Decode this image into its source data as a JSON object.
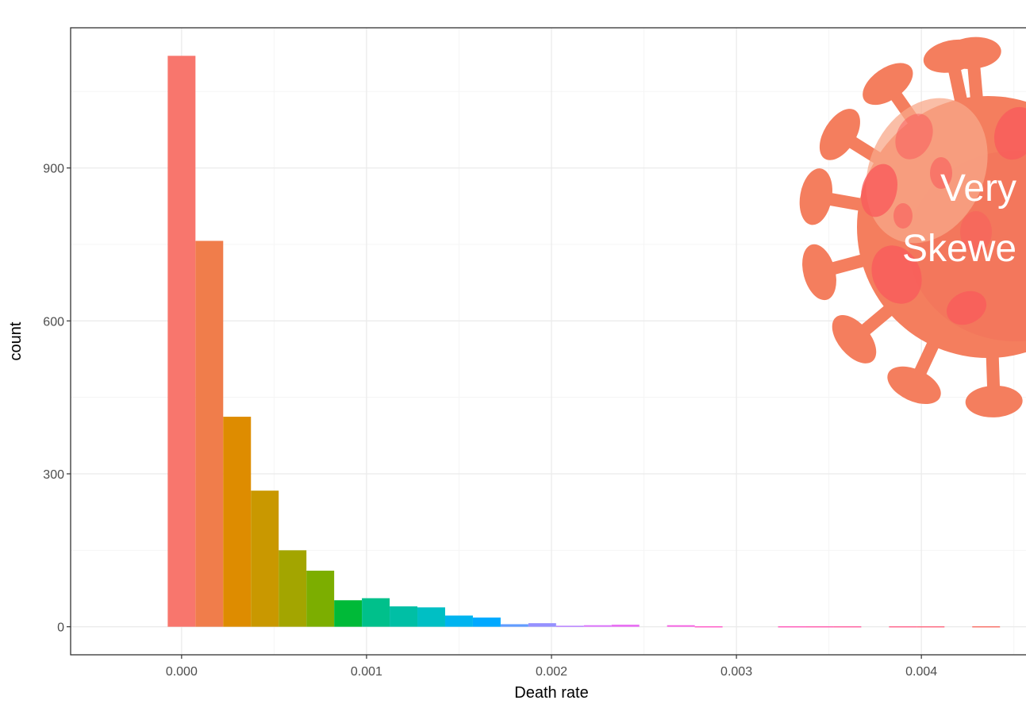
{
  "chart_data": {
    "type": "bar",
    "subtype": "histogram",
    "xlabel": "Death rate",
    "ylabel": "count",
    "xlim": [
      -0.0006,
      0.0046
    ],
    "ylim": [
      -55,
      1175
    ],
    "x_ticks": [
      {
        "value": 0.0,
        "label": "0.000"
      },
      {
        "value": 0.001,
        "label": "0.001"
      },
      {
        "value": 0.002,
        "label": "0.002"
      },
      {
        "value": 0.003,
        "label": "0.003"
      },
      {
        "value": 0.004,
        "label": "0.004"
      }
    ],
    "y_ticks": [
      {
        "value": 0,
        "label": "0"
      },
      {
        "value": 300,
        "label": "300"
      },
      {
        "value": 600,
        "label": "600"
      },
      {
        "value": 900,
        "label": "900"
      }
    ],
    "grid": true,
    "panel_border": true,
    "bin_width": 0.00015,
    "bins": [
      {
        "x": 0.0,
        "count": 1120,
        "color": "#F8766D"
      },
      {
        "x": 0.00015,
        "count": 757,
        "color": "#F07D4B"
      },
      {
        "x": 0.0003,
        "count": 412,
        "color": "#DE8C00"
      },
      {
        "x": 0.00045,
        "count": 267,
        "color": "#C99800"
      },
      {
        "x": 0.0006,
        "count": 150,
        "color": "#A3A500"
      },
      {
        "x": 0.00075,
        "count": 110,
        "color": "#7CAE00"
      },
      {
        "x": 0.0009,
        "count": 52,
        "color": "#00BA38"
      },
      {
        "x": 0.00105,
        "count": 56,
        "color": "#00C08B"
      },
      {
        "x": 0.0012,
        "count": 40,
        "color": "#00BFA5"
      },
      {
        "x": 0.00135,
        "count": 38,
        "color": "#00BFC4"
      },
      {
        "x": 0.0015,
        "count": 22,
        "color": "#00B4EF"
      },
      {
        "x": 0.00165,
        "count": 18,
        "color": "#00A9FF"
      },
      {
        "x": 0.0018,
        "count": 5,
        "color": "#619CFF"
      },
      {
        "x": 0.00195,
        "count": 7,
        "color": "#9590FF"
      },
      {
        "x": 0.0021,
        "count": 2,
        "color": "#B983FF"
      },
      {
        "x": 0.00225,
        "count": 3,
        "color": "#DB72FB"
      },
      {
        "x": 0.0024,
        "count": 4,
        "color": "#E76BF3"
      },
      {
        "x": 0.0027,
        "count": 3,
        "color": "#F564E3"
      },
      {
        "x": 0.00285,
        "count": 1,
        "color": "#FF61C9"
      },
      {
        "x": 0.0033,
        "count": 1,
        "color": "#FF62BC"
      },
      {
        "x": 0.00345,
        "count": 1,
        "color": "#FF64B0"
      },
      {
        "x": 0.0036,
        "count": 1,
        "color": "#FF67A4"
      },
      {
        "x": 0.0039,
        "count": 1,
        "color": "#FF6C91"
      },
      {
        "x": 0.00405,
        "count": 1,
        "color": "#FD6F85"
      },
      {
        "x": 0.00435,
        "count": 1,
        "color": "#F8766D"
      }
    ]
  },
  "overlay": {
    "icon": "virus-icon",
    "virus_color": "#F47E5E",
    "spot_color": "#F95B5B",
    "highlight_color": "#F8A88A",
    "line1": "Very",
    "line2": "Skewe"
  },
  "colors": {
    "background": "#FFFFFF",
    "grid_major": "#EBEBEB",
    "grid_minor": "#F5F5F5",
    "panel_border": "#333333",
    "tick_text": "#4D4D4D"
  }
}
